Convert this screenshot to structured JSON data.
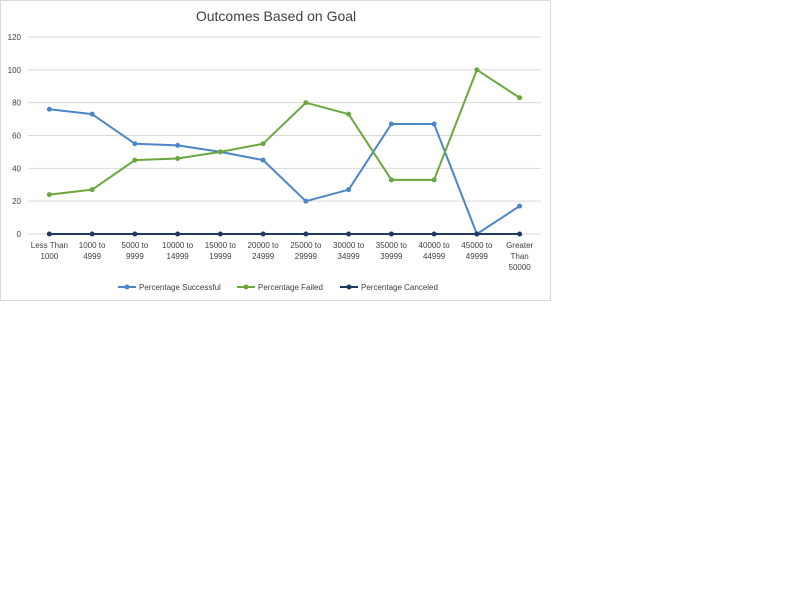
{
  "chart_data": {
    "type": "line",
    "title": "Outcomes Based on Goal",
    "xlabel": "",
    "ylabel": "",
    "ylim": [
      0,
      120
    ],
    "yticks": [
      0,
      20,
      40,
      60,
      80,
      100,
      120
    ],
    "grid": true,
    "legend_position": "bottom",
    "categories": [
      [
        "Less Than",
        "1000"
      ],
      [
        "1000 to",
        "4999"
      ],
      [
        "5000 to",
        "9999"
      ],
      [
        "10000 to",
        "14999"
      ],
      [
        "15000 to",
        "19999"
      ],
      [
        "20000 to",
        "24999"
      ],
      [
        "25000 to",
        "29999"
      ],
      [
        "30000 to",
        "34999"
      ],
      [
        "35000 to",
        "39999"
      ],
      [
        "40000 to",
        "44999"
      ],
      [
        "45000 to",
        "49999"
      ],
      [
        "Greater",
        "Than",
        "50000"
      ]
    ],
    "series": [
      {
        "name": "Percentage Successful",
        "color": "#4a86c8",
        "values": [
          76,
          73,
          55,
          54,
          50,
          45,
          20,
          27,
          67,
          67,
          0,
          17
        ]
      },
      {
        "name": "Percentage Failed",
        "color": "#6aa83e",
        "values": [
          24,
          27,
          45,
          46,
          50,
          55,
          80,
          73,
          33,
          33,
          100,
          83
        ]
      },
      {
        "name": "Percentage Canceled",
        "color": "#1f3864",
        "values": [
          0,
          0,
          0,
          0,
          0,
          0,
          0,
          0,
          0,
          0,
          0,
          0
        ]
      }
    ]
  }
}
